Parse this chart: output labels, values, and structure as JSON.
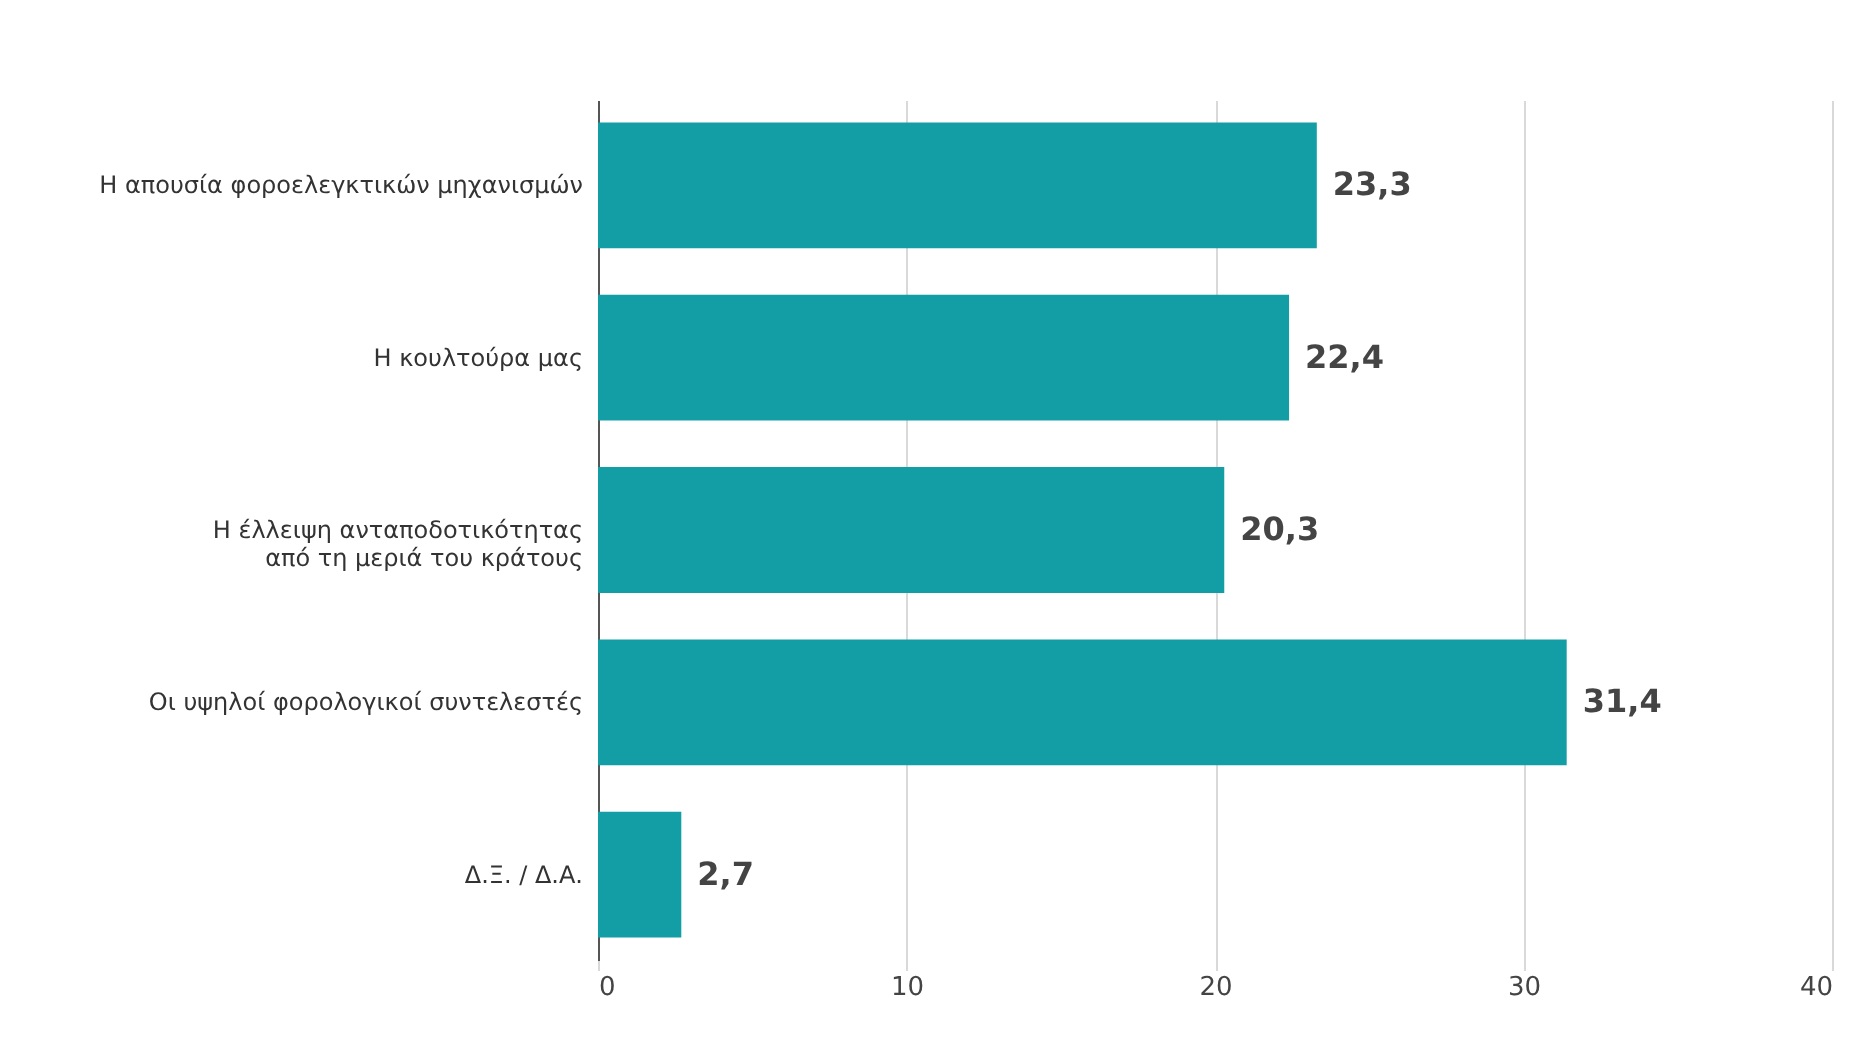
{
  "chart_data": {
    "type": "bar",
    "orientation": "horizontal",
    "categories": [
      "Η απουσία φοροελεγκτικών μηχανισμών",
      "Η κουλτούρα μας",
      "Η έλλειψη ανταποδοτικότητας\nαπό τη μεριά του κράτους",
      "Οι υψηλοί φορολογικοί συντελεστές",
      "Δ.Ξ. / Δ.Α."
    ],
    "values": [
      23.3,
      22.4,
      20.3,
      31.4,
      2.7
    ],
    "value_labels": [
      "23,3",
      "22,4",
      "20,3",
      "31,4",
      "2,7"
    ],
    "color": "#139ea6",
    "xlim": [
      0,
      40
    ],
    "xticks": [
      0,
      10,
      20,
      30,
      40
    ],
    "grid": "x"
  }
}
